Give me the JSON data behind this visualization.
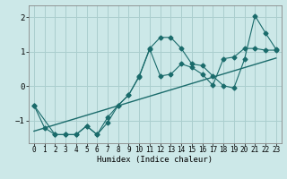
{
  "xlabel": "Humidex (Indice chaleur)",
  "bg_color": "#cce8e8",
  "line_color": "#1a6b6b",
  "grid_color": "#aacece",
  "xlim": [
    -0.5,
    23.5
  ],
  "ylim": [
    -1.65,
    2.35
  ],
  "yticks": [
    -1,
    0,
    1,
    2
  ],
  "xticks": [
    0,
    1,
    2,
    3,
    4,
    5,
    6,
    7,
    8,
    9,
    10,
    11,
    12,
    13,
    14,
    15,
    16,
    17,
    18,
    19,
    20,
    21,
    22,
    23
  ],
  "line1_x": [
    0,
    1,
    2,
    3,
    4,
    5,
    6,
    7,
    8,
    9,
    10,
    11,
    12,
    13,
    14,
    15,
    16,
    17,
    18,
    19,
    20,
    21,
    22,
    23
  ],
  "line1_y": [
    -0.55,
    -1.2,
    -1.4,
    -1.4,
    -1.4,
    -1.15,
    -1.4,
    -1.05,
    -0.55,
    -0.25,
    0.3,
    1.1,
    1.42,
    1.42,
    1.1,
    0.65,
    0.6,
    0.3,
    0.02,
    -0.05,
    0.78,
    2.05,
    1.55,
    1.08
  ],
  "line2_x": [
    0,
    2,
    3,
    4,
    5,
    6,
    7,
    8,
    9,
    10,
    11,
    12,
    13,
    14,
    15,
    16,
    17,
    18,
    19,
    20,
    21,
    22,
    23
  ],
  "line2_y": [
    -0.55,
    -1.4,
    -1.4,
    -1.4,
    -1.15,
    -1.4,
    -0.9,
    -0.55,
    -0.25,
    0.28,
    1.08,
    0.3,
    0.35,
    0.65,
    0.55,
    0.35,
    0.03,
    0.8,
    0.85,
    1.1,
    1.1,
    1.05,
    1.05
  ],
  "line3_x": [
    0,
    23
  ],
  "line3_y": [
    -1.3,
    0.82
  ]
}
